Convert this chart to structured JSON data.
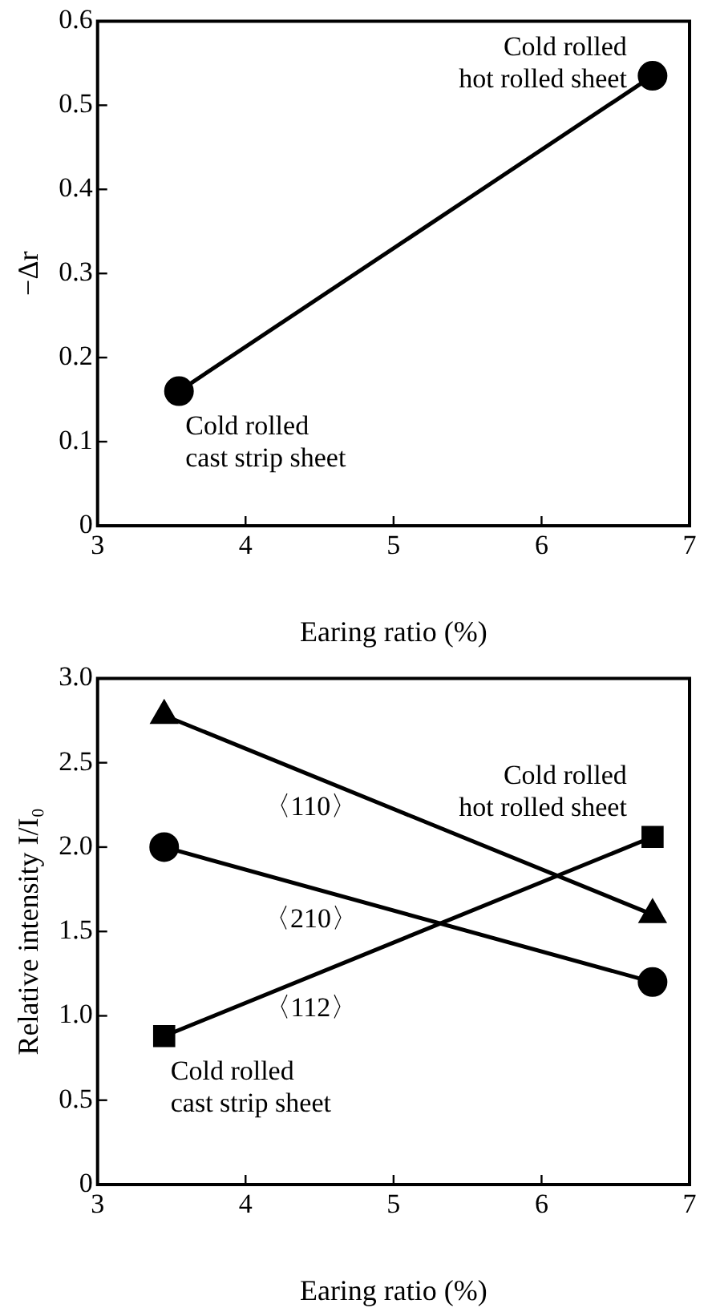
{
  "chart_data": [
    {
      "type": "line",
      "xlabel": "Earing ratio (%)",
      "ylabel": "−Δr",
      "xlim": [
        3,
        7
      ],
      "xticks": [
        3,
        4,
        5,
        6,
        7
      ],
      "ylim": [
        0,
        0.6
      ],
      "yticks": [
        0,
        0.1,
        0.2,
        0.3,
        0.4,
        0.5,
        0.6
      ],
      "grid": false,
      "legend": false,
      "marker": "circle",
      "series": [
        {
          "color": "#000000",
          "x": [
            3.55,
            6.75
          ],
          "values": [
            0.16,
            0.535
          ]
        }
      ],
      "annotations": [
        {
          "text": "Cold rolled\nhot rolled sheet",
          "x": 6.75,
          "y": 0.535
        },
        {
          "text": "Cold rolled\ncast strip sheet",
          "x": 3.55,
          "y": 0.16
        }
      ]
    },
    {
      "type": "line",
      "xlabel": "Earing ratio (%)",
      "ylabel": "Relative intensity I/I₀",
      "xlim": [
        3,
        7
      ],
      "xticks": [
        3,
        4,
        5,
        6,
        7
      ],
      "ylim": [
        0,
        3
      ],
      "yticks": [
        {
          "value": 0,
          "label": "0"
        },
        {
          "value": 0.5,
          "label": "0.5"
        },
        {
          "value": 1,
          "label": "1.0"
        },
        {
          "value": 1.5,
          "label": "1.5"
        },
        {
          "value": 2,
          "label": "2.0"
        },
        {
          "value": 2.5,
          "label": "2.5"
        },
        {
          "value": 3,
          "label": "3.0"
        }
      ],
      "grid": false,
      "legend": false,
      "series": [
        {
          "name": "〈110〉",
          "color": "#000000",
          "marker": "triangle",
          "x": [
            3.45,
            6.75
          ],
          "values": [
            2.78,
            1.6
          ]
        },
        {
          "name": "〈210〉",
          "color": "#000000",
          "marker": "circle",
          "x": [
            3.45,
            6.75
          ],
          "values": [
            2.0,
            1.2
          ]
        },
        {
          "name": "〈112〉",
          "color": "#000000",
          "marker": "square",
          "x": [
            3.45,
            6.75
          ],
          "values": [
            0.88,
            2.06
          ]
        }
      ],
      "annotations": [
        {
          "text": "Cold rolled\nhot rolled sheet",
          "x": 6.75,
          "y": 2.06
        },
        {
          "text": "Cold rolled\ncast strip sheet",
          "x": 3.45,
          "y": 0.88
        }
      ]
    }
  ]
}
